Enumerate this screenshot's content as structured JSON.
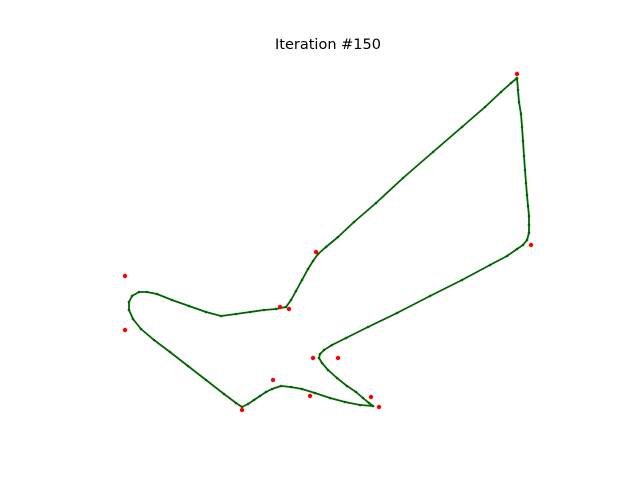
{
  "chart_data": {
    "type": "scatter",
    "title": "Iteration #150",
    "xlabel": "",
    "ylabel": "",
    "axes_visible": false,
    "grid": false,
    "legend": false,
    "colors": {
      "control_points": "#ff0000",
      "curve": "#006400",
      "curve_samples": "#006400"
    },
    "series": [
      {
        "role": "control_points",
        "style": "red-dots",
        "points": [
          [
            517,
            74
          ],
          [
            531,
            245
          ],
          [
            338,
            358
          ],
          [
            313,
            358
          ],
          [
            371,
            397
          ],
          [
            379,
            407
          ],
          [
            310,
            396
          ],
          [
            273,
            380
          ],
          [
            242,
            410
          ],
          [
            125,
            330
          ],
          [
            125,
            276
          ],
          [
            280,
            307
          ],
          [
            289,
            309
          ],
          [
            316,
            252
          ]
        ]
      },
      {
        "role": "curve",
        "style": "green-line-with-dots",
        "points": [
          [
            517,
            78
          ],
          [
            518,
            90
          ],
          [
            519,
            102
          ],
          [
            521,
            114
          ],
          [
            522,
            127
          ],
          [
            523,
            141
          ],
          [
            524,
            156
          ],
          [
            525,
            170
          ],
          [
            526,
            183
          ],
          [
            527,
            195
          ],
          [
            528,
            206
          ],
          [
            529,
            216
          ],
          [
            529,
            225
          ],
          [
            529,
            233
          ],
          [
            527,
            240
          ],
          [
            523,
            245
          ],
          [
            517,
            249
          ],
          [
            507,
            256
          ],
          [
            490,
            265
          ],
          [
            462,
            280
          ],
          [
            430,
            296
          ],
          [
            397,
            313
          ],
          [
            368,
            327
          ],
          [
            346,
            338
          ],
          [
            332,
            345
          ],
          [
            324,
            350
          ],
          [
            320,
            354
          ],
          [
            319,
            358
          ],
          [
            322,
            363
          ],
          [
            328,
            370
          ],
          [
            337,
            378
          ],
          [
            347,
            386
          ],
          [
            356,
            392
          ],
          [
            363,
            398
          ],
          [
            369,
            403
          ],
          [
            373,
            406
          ],
          [
            360,
            405
          ],
          [
            345,
            402
          ],
          [
            330,
            398
          ],
          [
            315,
            393
          ],
          [
            302,
            389
          ],
          [
            291,
            387
          ],
          [
            281,
            386
          ],
          [
            272,
            389
          ],
          [
            266,
            392
          ],
          [
            260,
            396
          ],
          [
            254,
            400
          ],
          [
            248,
            404
          ],
          [
            242,
            407
          ],
          [
            236,
            403
          ],
          [
            224,
            394
          ],
          [
            206,
            380
          ],
          [
            188,
            366
          ],
          [
            170,
            352
          ],
          [
            154,
            340
          ],
          [
            141,
            329
          ],
          [
            133,
            319
          ],
          [
            129,
            310
          ],
          [
            129,
            302
          ],
          [
            132,
            296
          ],
          [
            139,
            292
          ],
          [
            147,
            292
          ],
          [
            157,
            294
          ],
          [
            172,
            300
          ],
          [
            189,
            306
          ],
          [
            206,
            312
          ],
          [
            221,
            316
          ],
          [
            236,
            314
          ],
          [
            250,
            312
          ],
          [
            264,
            310
          ],
          [
            276,
            309
          ],
          [
            286,
            307
          ],
          [
            291,
            300
          ],
          [
            296,
            291
          ],
          [
            302,
            280
          ],
          [
            308,
            269
          ],
          [
            313,
            261
          ],
          [
            318,
            254
          ],
          [
            326,
            247
          ],
          [
            338,
            237
          ],
          [
            354,
            222
          ],
          [
            376,
            203
          ],
          [
            403,
            178
          ],
          [
            433,
            152
          ],
          [
            462,
            127
          ],
          [
            485,
            107
          ],
          [
            501,
            92
          ],
          [
            511,
            83
          ],
          [
            516,
            79
          ]
        ]
      }
    ]
  }
}
